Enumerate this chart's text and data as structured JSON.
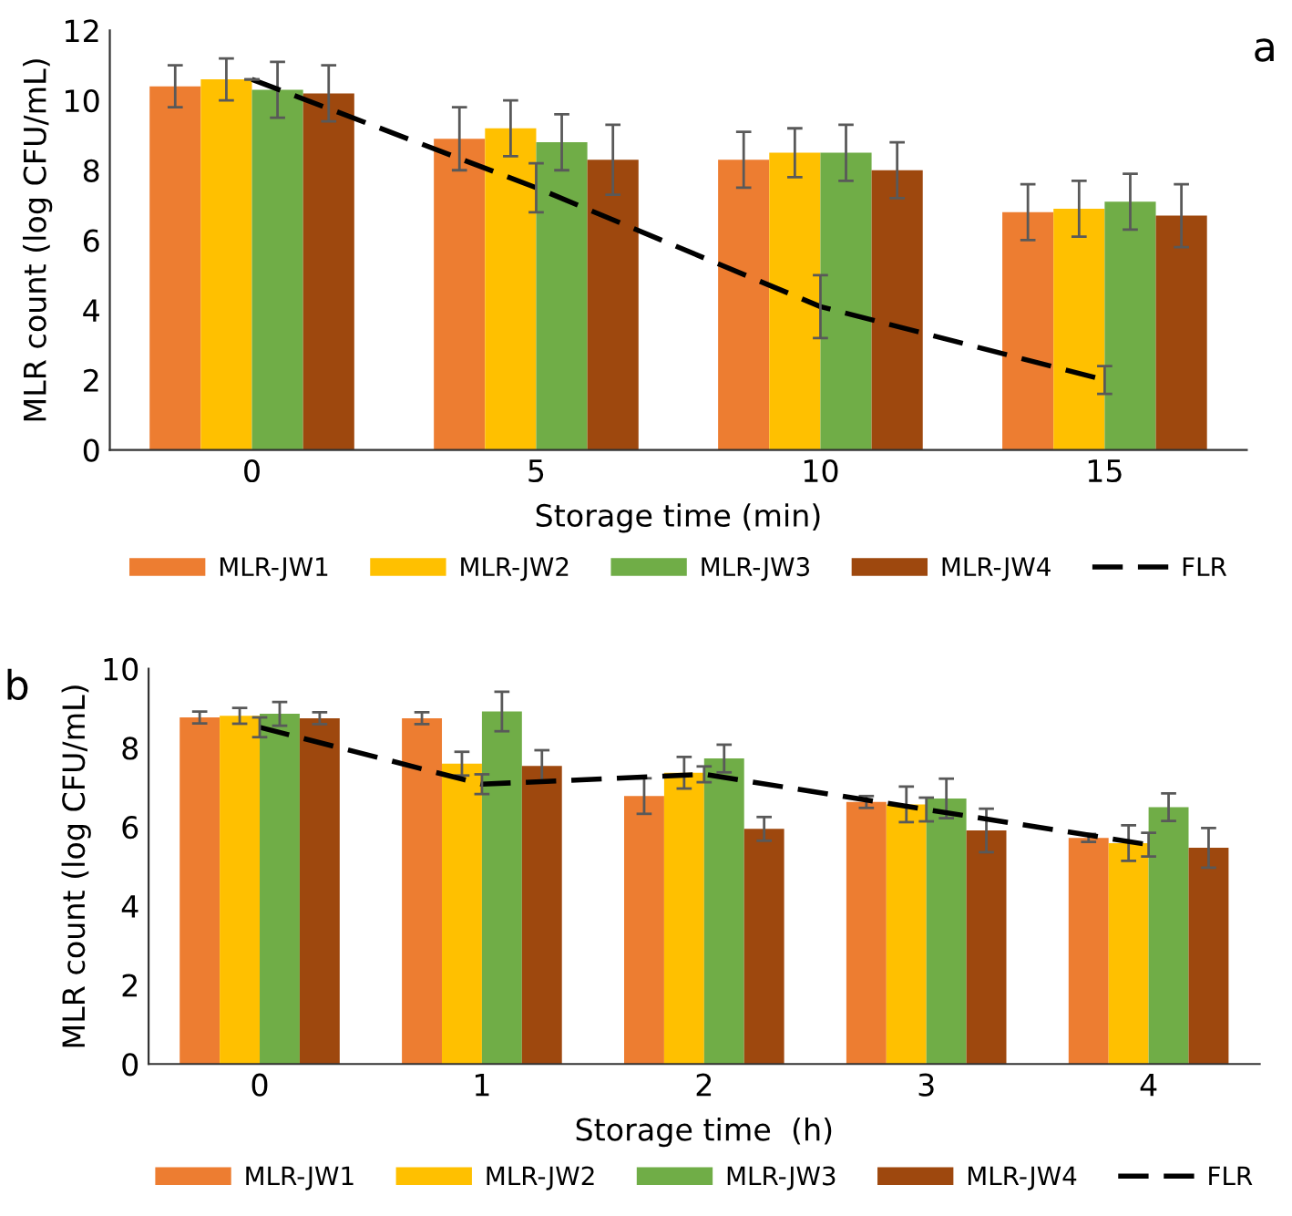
{
  "chart_data": [
    {
      "type": "bar",
      "annotations": [
        "a"
      ],
      "xlabel": "Storage time (min)",
      "ylabel": "MLR count (log CFU/mL)",
      "categories": [
        "0",
        "5",
        "10",
        "15"
      ],
      "ylim": [
        0,
        12
      ],
      "yticks": [
        0,
        2,
        4,
        6,
        8,
        10,
        12
      ],
      "grid": false,
      "legend": "bottom",
      "series": [
        {
          "name": "MLR-JW1",
          "color": "#ed7d31",
          "values": [
            10.4,
            8.9,
            8.3,
            6.8
          ],
          "errors": [
            0.6,
            0.9,
            0.8,
            0.8
          ]
        },
        {
          "name": "MLR-JW2",
          "color": "#ffc000",
          "values": [
            10.6,
            9.2,
            8.5,
            6.9
          ],
          "errors": [
            0.6,
            0.8,
            0.7,
            0.8
          ]
        },
        {
          "name": "MLR-JW3",
          "color": "#70ad47",
          "values": [
            10.3,
            8.8,
            8.5,
            7.1
          ],
          "errors": [
            0.8,
            0.8,
            0.8,
            0.8
          ]
        },
        {
          "name": "MLR-JW4",
          "color": "#9e480e",
          "values": [
            10.2,
            8.3,
            8.0,
            6.7
          ],
          "errors": [
            0.8,
            1.0,
            0.8,
            0.9
          ]
        },
        {
          "name": "FLR",
          "type": "line",
          "color": "#000000",
          "line_style": "dashed",
          "marker": "none",
          "values": [
            10.6,
            7.5,
            4.1,
            2.0
          ],
          "errors": [
            null,
            0.7,
            0.9,
            0.4
          ]
        }
      ]
    },
    {
      "type": "bar",
      "annotations": [
        "b"
      ],
      "xlabel": "Storage time  (h)",
      "ylabel": "MLR count (log CFU/mL)",
      "categories": [
        "0",
        "1",
        "2",
        "3",
        "4"
      ],
      "ylim": [
        0,
        10
      ],
      "yticks": [
        0,
        2,
        4,
        6,
        8,
        10
      ],
      "grid": false,
      "legend": "bottom",
      "series": [
        {
          "name": "MLR-JW1",
          "color": "#ed7d31",
          "values": [
            8.77,
            8.75,
            6.78,
            6.63,
            5.72
          ],
          "errors": [
            0.15,
            0.15,
            0.45,
            0.15,
            0.1
          ]
        },
        {
          "name": "MLR-JW2",
          "color": "#ffc000",
          "values": [
            8.81,
            7.6,
            7.37,
            6.57,
            5.59
          ],
          "errors": [
            0.2,
            0.3,
            0.4,
            0.45,
            0.45
          ]
        },
        {
          "name": "MLR-JW3",
          "color": "#70ad47",
          "values": [
            8.86,
            8.92,
            7.73,
            6.72,
            6.5
          ],
          "errors": [
            0.3,
            0.5,
            0.35,
            0.5,
            0.35
          ]
        },
        {
          "name": "MLR-JW4",
          "color": "#9e480e",
          "values": [
            8.75,
            7.54,
            5.95,
            5.91,
            5.47
          ],
          "errors": [
            0.15,
            0.4,
            0.3,
            0.55,
            0.5
          ]
        },
        {
          "name": "FLR",
          "type": "line",
          "color": "#000000",
          "line_style": "dashed",
          "marker": "none",
          "values": [
            8.52,
            7.08,
            7.33,
            6.44,
            5.55
          ],
          "errors": [
            0.25,
            0.25,
            0.2,
            0.3,
            0.3
          ]
        }
      ]
    }
  ]
}
